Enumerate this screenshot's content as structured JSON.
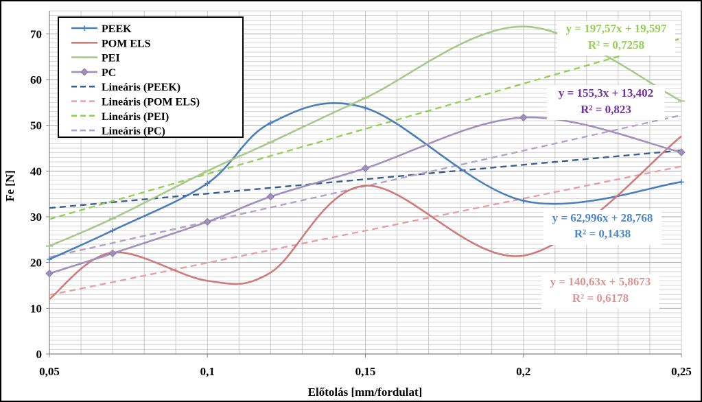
{
  "chart_data": {
    "type": "line",
    "title": "",
    "xlabel": "Előtolás [mm/fordulat]",
    "ylabel": "Fe [N]",
    "xlim": [
      0.05,
      0.25
    ],
    "ylim": [
      0,
      75
    ],
    "x_ticks": [
      0.05,
      0.1,
      0.15,
      0.2,
      0.25
    ],
    "x_tick_labels": [
      "0,05",
      "0,1",
      "0,15",
      "0,2",
      "0,25"
    ],
    "y_ticks": [
      0,
      10,
      20,
      30,
      40,
      50,
      60,
      70
    ],
    "y_tick_labels": [
      "0",
      "10",
      "20",
      "30",
      "40",
      "50",
      "60",
      "70"
    ],
    "grid": true,
    "legend_position": "top-left",
    "series": [
      {
        "name": "PEEK",
        "color": "#4a7ebb",
        "marker": "plus",
        "x": [
          0.05,
          0.07,
          0.1,
          0.12,
          0.15,
          0.2,
          0.25
        ],
        "y": [
          20.7,
          27.0,
          37.3,
          50.5,
          53.8,
          33.5,
          37.6
        ]
      },
      {
        "name": "POM ELS",
        "color": "#cd7b7b",
        "marker": "none",
        "x": [
          0.05,
          0.07,
          0.1,
          0.12,
          0.15,
          0.2,
          0.25
        ],
        "y": [
          12.0,
          22.2,
          16.0,
          17.8,
          36.8,
          21.5,
          47.6
        ]
      },
      {
        "name": "PEI",
        "color": "#a6c98a",
        "marker": "dash",
        "x": [
          0.05,
          0.07,
          0.1,
          0.12,
          0.15,
          0.2,
          0.25
        ],
        "y": [
          23.6,
          29.6,
          40.0,
          46.3,
          56.0,
          71.6,
          55.3
        ]
      },
      {
        "name": "PC",
        "color": "#a090bd",
        "marker": "diamond",
        "x": [
          0.05,
          0.07,
          0.1,
          0.12,
          0.15,
          0.2,
          0.25
        ],
        "y": [
          17.6,
          22.0,
          28.9,
          34.4,
          40.6,
          51.7,
          44.1
        ]
      }
    ],
    "trendlines": [
      {
        "name": "Lineáris (PEEK)",
        "color": "#376092",
        "slope": 62.996,
        "intercept": 28.768,
        "equation": "y = 62,996x + 28,768",
        "r2": "R² = 0,1438",
        "label_color": "#4a86c8"
      },
      {
        "name": "Lineáris (POM ELS)",
        "color": "#e6a0a0",
        "slope": 140.63,
        "intercept": 5.8673,
        "equation": "y = 140,63x + 5,8673",
        "r2": "R² = 0,6178",
        "label_color": "#d99594"
      },
      {
        "name": "Lineáris (PEI)",
        "color": "#92d050",
        "slope": 197.57,
        "intercept": 19.597,
        "equation": "y = 197,57x + 19,597",
        "r2": "R² = 0,7258",
        "label_color": "#92d050"
      },
      {
        "name": "Lineáris (PC)",
        "color": "#b3a2c7",
        "slope": 155.3,
        "intercept": 13.402,
        "equation": "y = 155,3x + 13,402",
        "r2": "R² = 0,823",
        "label_color": "#7030a0"
      }
    ]
  }
}
